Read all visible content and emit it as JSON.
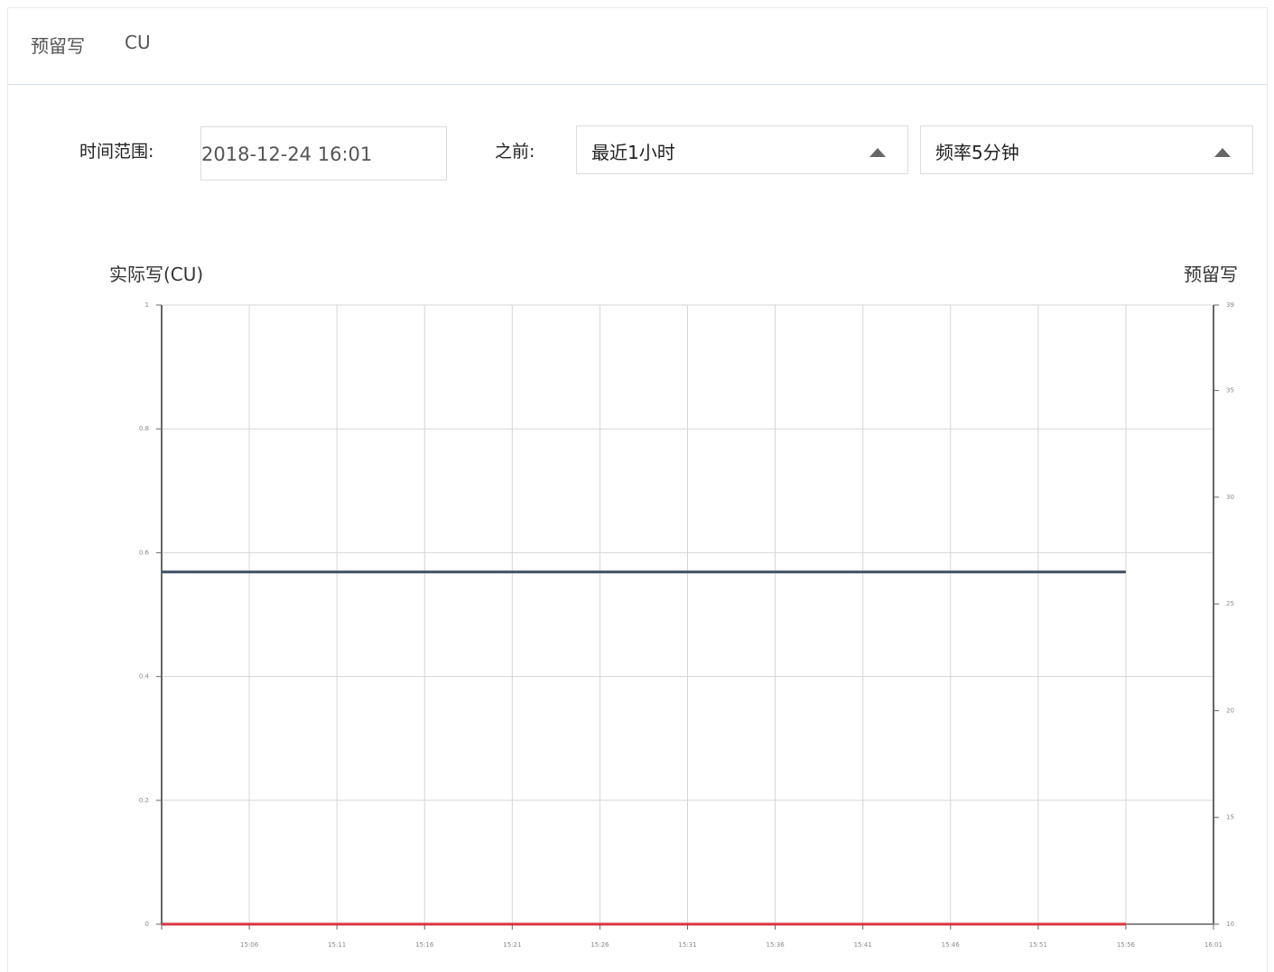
{
  "header": {
    "tab1": "预留写",
    "tab2": "CU"
  },
  "controls": {
    "time_range_label": "时间范围:",
    "time_range_value": "2018-12-24 16:01",
    "before_label": "之前:",
    "period_select": "最近1小时",
    "frequency_select": "频率5分钟"
  },
  "colors": {
    "series_line": "#3d4f63",
    "baseline": "#d9343d",
    "grid": "#d6d6d6",
    "axis": "#666666"
  },
  "chart_data": {
    "type": "line",
    "ylabel_left": "实际写(CU)",
    "ylabel_right": "预留写",
    "left_axis": {
      "ylim": [
        0,
        1
      ],
      "ticks": [
        "0",
        "0.2",
        "0.4",
        "0.6",
        "0.8",
        "1"
      ]
    },
    "right_axis": {
      "ylim": [
        10,
        39
      ],
      "ticks": [
        "10",
        "15",
        "20",
        "25",
        "30",
        "35",
        "39"
      ]
    },
    "x_ticks": [
      "15:06",
      "15:11",
      "15:16",
      "15:21",
      "15:26",
      "15:31",
      "15:36",
      "15:41",
      "15:46",
      "15:51",
      "15:56",
      "16:01"
    ],
    "grid": true,
    "series": [
      {
        "axis": "right",
        "color": "#3d4f63",
        "x": [
          "15:01",
          "15:56"
        ],
        "values": [
          26.5,
          26.5
        ]
      },
      {
        "axis": "left",
        "color": "#d9343d",
        "x": [
          "15:01",
          "15:56"
        ],
        "values": [
          0,
          0
        ]
      }
    ]
  }
}
